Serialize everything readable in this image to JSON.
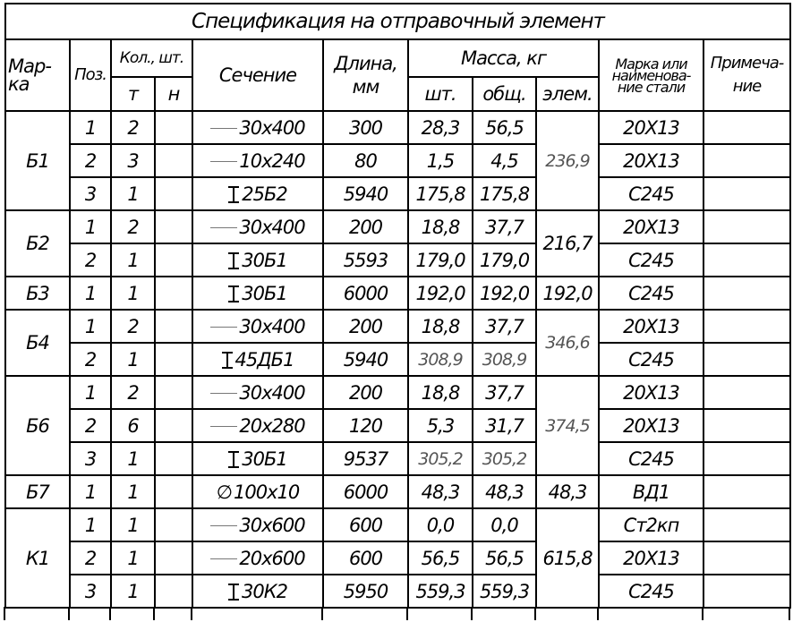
{
  "title": "Спецификация на отправочный элемент",
  "headers": {
    "mark": "Мар-\nка",
    "pos": "Поз.",
    "qty": "Кол., шт.",
    "qty_t": "т",
    "qty_n": "н",
    "section": "Сечение",
    "length": "Длина,\nмм",
    "mass": "Масса, кг",
    "mass_each": "шт.",
    "mass_total": "общ.",
    "mass_elem": "элем.",
    "steel": "Марка или\nнаименова-\nние стали",
    "note": "Примеча-\nние"
  },
  "groups": [
    {
      "mark": "Б1",
      "elem_mass": "236,9",
      "elem_thin": true,
      "rows": [
        {
          "pos": "1",
          "t": "2",
          "n": "",
          "icon": "plate-icon",
          "section": "30x400",
          "length": "300",
          "each": "28,3",
          "total": "56,5",
          "steel": "20Х13",
          "note": ""
        },
        {
          "pos": "2",
          "t": "3",
          "n": "",
          "icon": "plate-icon",
          "section": "10x240",
          "length": "80",
          "each": "1,5",
          "total": "4,5",
          "steel": "20Х13",
          "note": ""
        },
        {
          "pos": "3",
          "t": "1",
          "n": "",
          "icon": "i-beam-icon",
          "section": "25Б2",
          "length": "5940",
          "each": "175,8",
          "total": "175,8",
          "steel": "С245",
          "note": ""
        }
      ]
    },
    {
      "mark": "Б2",
      "elem_mass": "216,7",
      "rows": [
        {
          "pos": "1",
          "t": "2",
          "n": "",
          "icon": "plate-icon",
          "section": "30x400",
          "length": "200",
          "each": "18,8",
          "total": "37,7",
          "steel": "20Х13",
          "note": ""
        },
        {
          "pos": "2",
          "t": "1",
          "n": "",
          "icon": "i-beam-icon",
          "section": "30Б1",
          "length": "5593",
          "each": "179,0",
          "total": "179,0",
          "steel": "С245",
          "note": ""
        }
      ]
    },
    {
      "mark": "Б3",
      "elem_mass": "192,0",
      "rows": [
        {
          "pos": "1",
          "t": "1",
          "n": "",
          "icon": "i-beam-icon",
          "section": "30Б1",
          "length": "6000",
          "each": "192,0",
          "total": "192,0",
          "steel": "С245",
          "note": ""
        }
      ]
    },
    {
      "mark": "Б4",
      "elem_mass": "346,6",
      "elem_thin": true,
      "rows": [
        {
          "pos": "1",
          "t": "2",
          "n": "",
          "icon": "plate-icon",
          "section": "30x400",
          "length": "200",
          "each": "18,8",
          "total": "37,7",
          "steel": "20Х13",
          "note": ""
        },
        {
          "pos": "2",
          "t": "1",
          "n": "",
          "icon": "i-beam-icon",
          "section": "45ДБ1",
          "length": "5940",
          "each": "308,9",
          "total": "308,9",
          "thin": true,
          "steel": "С245",
          "note": ""
        }
      ]
    },
    {
      "mark": "Б6",
      "elem_mass": "374,5",
      "elem_thin": true,
      "rows": [
        {
          "pos": "1",
          "t": "2",
          "n": "",
          "icon": "plate-icon",
          "section": "30x400",
          "length": "200",
          "each": "18,8",
          "total": "37,7",
          "steel": "20Х13",
          "note": ""
        },
        {
          "pos": "2",
          "t": "6",
          "n": "",
          "icon": "plate-icon",
          "section": "20x280",
          "length": "120",
          "each": "5,3",
          "total": "31,7",
          "steel": "20Х13",
          "note": ""
        },
        {
          "pos": "3",
          "t": "1",
          "n": "",
          "icon": "i-beam-icon",
          "section": "30Б1",
          "length": "9537",
          "each": "305,2",
          "total": "305,2",
          "thin": true,
          "steel": "С245",
          "note": ""
        }
      ]
    },
    {
      "mark": "Б7",
      "elem_mass": "48,3",
      "rows": [
        {
          "pos": "1",
          "t": "1",
          "n": "",
          "icon": "diameter-icon",
          "section": "100x10",
          "length": "6000",
          "each": "48,3",
          "total": "48,3",
          "steel": "ВД1",
          "note": ""
        }
      ]
    },
    {
      "mark": "К1",
      "elem_mass": "615,8",
      "rows": [
        {
          "pos": "1",
          "t": "1",
          "n": "",
          "icon": "plate-icon",
          "section": "30x600",
          "length": "600",
          "each": "0,0",
          "total": "0,0",
          "steel": "Ст2кп",
          "note": ""
        },
        {
          "pos": "2",
          "t": "1",
          "n": "",
          "icon": "plate-icon",
          "section": "20x600",
          "length": "600",
          "each": "56,5",
          "total": "56,5",
          "steel": "20Х13",
          "note": ""
        },
        {
          "pos": "3",
          "t": "1",
          "n": "",
          "icon": "i-beam-icon",
          "section": "30К2",
          "length": "5950",
          "each": "559,3",
          "total": "559,3",
          "steel": "С245",
          "note": ""
        }
      ]
    }
  ]
}
